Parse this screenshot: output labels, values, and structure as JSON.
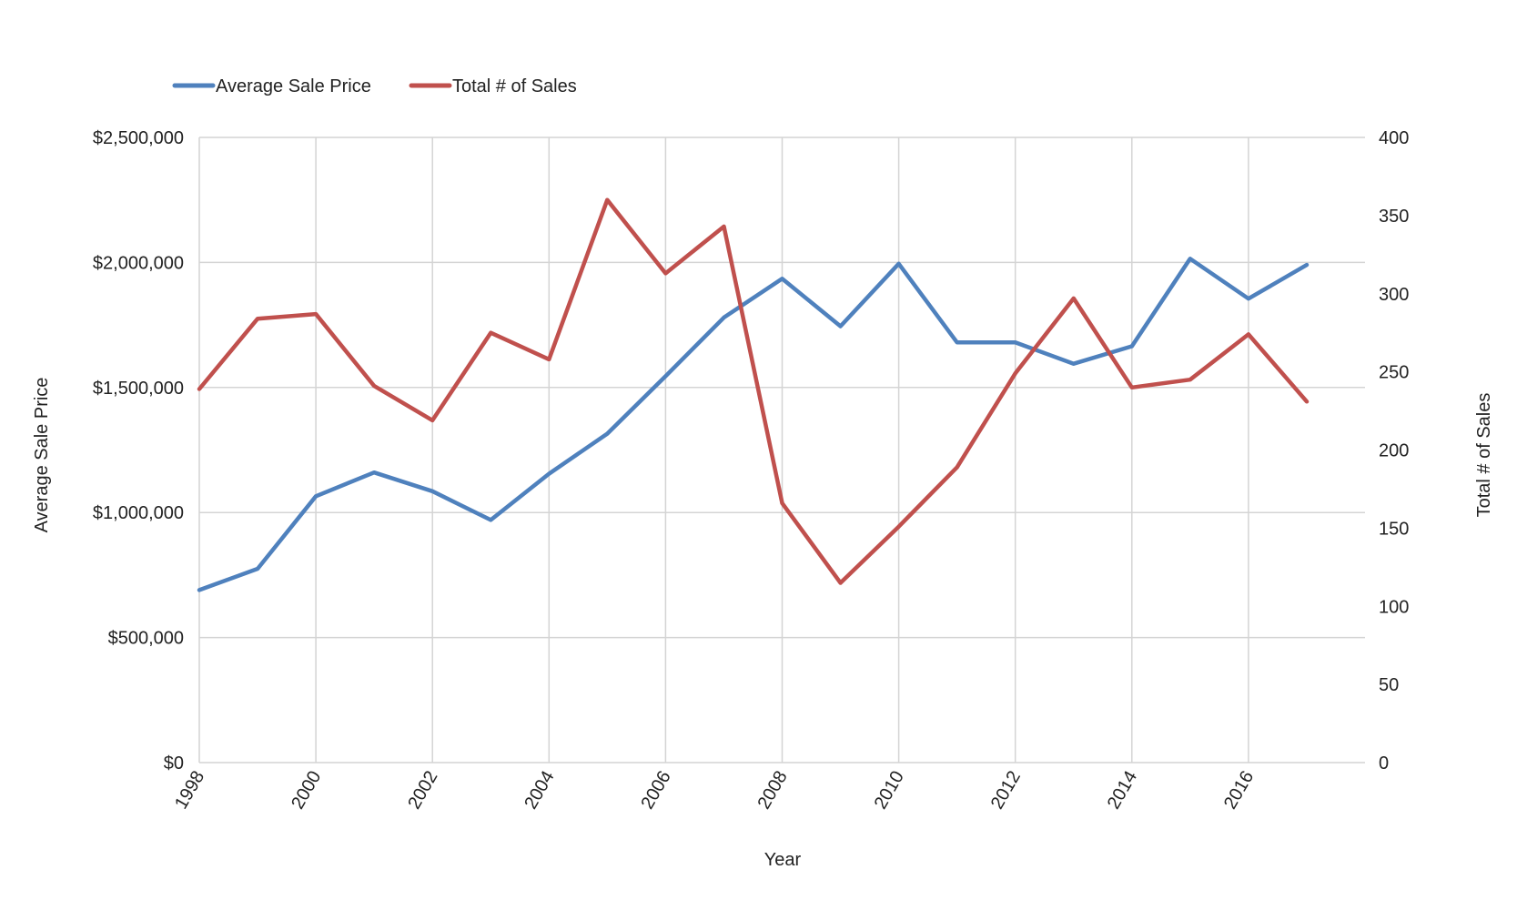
{
  "chart_data": {
    "type": "line",
    "title": "",
    "xlabel": "Year",
    "ylabel": "Average Sale Price",
    "y2label": "Total # of Sales",
    "legend_position": "top-left",
    "grid": true,
    "x": [
      1998,
      1999,
      2000,
      2001,
      2002,
      2003,
      2004,
      2005,
      2006,
      2007,
      2008,
      2009,
      2010,
      2011,
      2012,
      2013,
      2014,
      2015,
      2016,
      2017
    ],
    "xticks": [
      "1998",
      "2000",
      "2002",
      "2004",
      "2006",
      "2008",
      "2010",
      "2012",
      "2014",
      "2016"
    ],
    "ylim": [
      0,
      2500000
    ],
    "yticks": [
      "$0",
      "$500,000",
      "$1,000,000",
      "$1,500,000",
      "$2,000,000",
      "$2,500,000"
    ],
    "y2lim": [
      0,
      400
    ],
    "y2ticks": [
      "0",
      "50",
      "100",
      "150",
      "200",
      "250",
      "300",
      "350",
      "400"
    ],
    "series": [
      {
        "name": "Average Sale Price",
        "axis": "left",
        "color": "#4F81BD",
        "values": [
          690000,
          775000,
          1065000,
          1160000,
          1085000,
          970000,
          1155000,
          1315000,
          1545000,
          1780000,
          1935000,
          1745000,
          1995000,
          1680000,
          1680000,
          1595000,
          1665000,
          2015000,
          1855000,
          1990000
        ]
      },
      {
        "name": "Total # of Sales",
        "axis": "right",
        "color": "#C0504D",
        "values": [
          239,
          284,
          287,
          241,
          219,
          275,
          258,
          360,
          313,
          343,
          166,
          115,
          151,
          189,
          249,
          297,
          240,
          245,
          274,
          231
        ]
      }
    ]
  }
}
